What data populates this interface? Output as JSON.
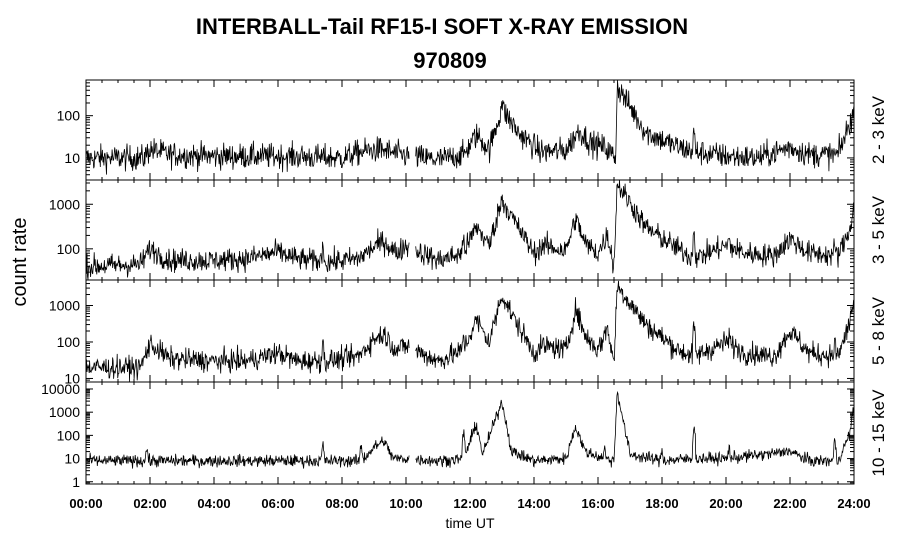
{
  "chart_data": {
    "type": "line",
    "title": "INTERBALL-Tail RF15-I SOFT X-RAY EMISSION",
    "subtitle": "970809",
    "xlabel": "time UT",
    "ylabel": "count rate",
    "x_ticks": [
      "00:00",
      "02:00",
      "04:00",
      "06:00",
      "08:00",
      "10:00",
      "12:00",
      "14:00",
      "16:00",
      "18:00",
      "20:00",
      "22:00",
      "24:00"
    ],
    "xlim_hours": [
      0,
      24
    ],
    "data_gap_hours": [
      10.1,
      10.3
    ],
    "panels": [
      {
        "name": "2 - 3 keV",
        "scale": "log",
        "ylim": [
          3,
          700
        ],
        "ytick_labels": [
          "10",
          "100"
        ],
        "ytick_values": [
          10,
          100
        ],
        "baseline": [
          [
            0,
            10
          ],
          [
            1.8,
            10
          ],
          [
            2.0,
            16
          ],
          [
            2.6,
            12
          ],
          [
            4,
            11
          ],
          [
            6,
            11
          ],
          [
            8,
            10
          ],
          [
            8.6,
            14
          ],
          [
            9.2,
            16
          ],
          [
            9.8,
            12
          ],
          [
            11,
            9
          ],
          [
            11.8,
            12
          ],
          [
            12.2,
            35
          ],
          [
            12.6,
            16
          ],
          [
            13.0,
            150
          ],
          [
            13.5,
            40
          ],
          [
            14.2,
            14
          ],
          [
            15.0,
            15
          ],
          [
            15.4,
            45
          ],
          [
            15.8,
            22
          ],
          [
            16.2,
            18
          ],
          [
            16.55,
            10
          ],
          [
            16.6,
            500
          ],
          [
            17.5,
            40
          ],
          [
            18.5,
            18
          ],
          [
            19.0,
            14
          ],
          [
            20,
            11
          ],
          [
            21,
            10
          ],
          [
            22,
            18
          ],
          [
            22.6,
            12
          ],
          [
            23.5,
            12
          ],
          [
            23.85,
            60
          ],
          [
            24,
            130
          ]
        ],
        "noise": 0.35,
        "spikes": [
          [
            19.0,
            40
          ],
          [
            13.0,
            220
          ]
        ]
      },
      {
        "name": "3 - 5 keV",
        "scale": "log",
        "ylim": [
          20,
          3500
        ],
        "ytick_labels": [
          "100",
          "1000"
        ],
        "ytick_values": [
          100,
          1000
        ],
        "baseline": [
          [
            0,
            40
          ],
          [
            1.7,
            45
          ],
          [
            2.0,
            100
          ],
          [
            2.6,
            55
          ],
          [
            4,
            55
          ],
          [
            5,
            60
          ],
          [
            6,
            85
          ],
          [
            6.6,
            60
          ],
          [
            7.5,
            50
          ],
          [
            8.5,
            60
          ],
          [
            9,
            110
          ],
          [
            9.3,
            150
          ],
          [
            9.7,
            80
          ],
          [
            10,
            120
          ],
          [
            11,
            55
          ],
          [
            11.8,
            80
          ],
          [
            12.2,
            320
          ],
          [
            12.6,
            120
          ],
          [
            13.0,
            1300
          ],
          [
            13.4,
            400
          ],
          [
            14.0,
            80
          ],
          [
            14.3,
            120
          ],
          [
            15.0,
            90
          ],
          [
            15.3,
            500
          ],
          [
            15.6,
            130
          ],
          [
            16.0,
            80
          ],
          [
            16.3,
            210
          ],
          [
            16.5,
            40
          ],
          [
            16.6,
            3000
          ],
          [
            17.5,
            300
          ],
          [
            18.5,
            100
          ],
          [
            19.0,
            60
          ],
          [
            20.0,
            120
          ],
          [
            20.6,
            80
          ],
          [
            21.5,
            70
          ],
          [
            22.0,
            170
          ],
          [
            22.6,
            80
          ],
          [
            23.5,
            70
          ],
          [
            23.85,
            250
          ],
          [
            24,
            900
          ]
        ],
        "noise": 0.3,
        "spikes": [
          [
            7.4,
            140
          ],
          [
            11.8,
            200
          ],
          [
            19.0,
            300
          ],
          [
            20.1,
            150
          ],
          [
            23.4,
            120
          ]
        ]
      },
      {
        "name": "5 - 8 keV",
        "scale": "log",
        "ylim": [
          8,
          5000
        ],
        "ytick_labels": [
          "10",
          "100",
          "1000"
        ],
        "ytick_values": [
          10,
          100,
          1000
        ],
        "baseline": [
          [
            0,
            20
          ],
          [
            1.7,
            20
          ],
          [
            2.0,
            90
          ],
          [
            2.6,
            35
          ],
          [
            4,
            30
          ],
          [
            5,
            30
          ],
          [
            6,
            50
          ],
          [
            6.6,
            30
          ],
          [
            7.5,
            30
          ],
          [
            8.5,
            40
          ],
          [
            9,
            120
          ],
          [
            9.3,
            170
          ],
          [
            9.7,
            60
          ],
          [
            10,
            80
          ],
          [
            11,
            30
          ],
          [
            11.8,
            60
          ],
          [
            12.2,
            400
          ],
          [
            12.6,
            100
          ],
          [
            13.0,
            2000
          ],
          [
            13.4,
            400
          ],
          [
            14.0,
            50
          ],
          [
            14.3,
            80
          ],
          [
            15.0,
            60
          ],
          [
            15.3,
            800
          ],
          [
            15.6,
            150
          ],
          [
            16.0,
            60
          ],
          [
            16.3,
            250
          ],
          [
            16.5,
            25
          ],
          [
            16.6,
            3500
          ],
          [
            17.5,
            300
          ],
          [
            18.5,
            60
          ],
          [
            19.0,
            40
          ],
          [
            20.0,
            100
          ],
          [
            20.6,
            50
          ],
          [
            21.5,
            40
          ],
          [
            22.0,
            200
          ],
          [
            22.6,
            50
          ],
          [
            23.5,
            40
          ],
          [
            23.85,
            300
          ],
          [
            24,
            1500
          ]
        ],
        "noise": 0.35,
        "spikes": [
          [
            7.4,
            100
          ],
          [
            11.8,
            150
          ],
          [
            18.0,
            120
          ],
          [
            19.0,
            300
          ],
          [
            20.1,
            150
          ],
          [
            23.4,
            100
          ]
        ]
      },
      {
        "name": "10 - 15 keV",
        "scale": "log",
        "ylim": [
          0.8,
          20000
        ],
        "ytick_labels": [
          "1",
          "10",
          "100",
          "1000",
          "10000"
        ],
        "ytick_values": [
          1,
          10,
          100,
          1000,
          10000
        ],
        "baseline": [
          [
            0,
            8
          ],
          [
            8.6,
            8
          ],
          [
            9.0,
            30
          ],
          [
            9.3,
            60
          ],
          [
            9.6,
            10
          ],
          [
            10,
            10
          ],
          [
            11,
            8
          ],
          [
            11.8,
            10
          ],
          [
            12.2,
            300
          ],
          [
            12.4,
            15
          ],
          [
            13.0,
            3000
          ],
          [
            13.3,
            20
          ],
          [
            14.0,
            8
          ],
          [
            15.0,
            10
          ],
          [
            15.3,
            250
          ],
          [
            15.6,
            20
          ],
          [
            16.2,
            10
          ],
          [
            16.5,
            8
          ],
          [
            16.6,
            8000
          ],
          [
            17.0,
            15
          ],
          [
            18,
            8
          ],
          [
            19,
            10
          ],
          [
            20,
            10
          ],
          [
            22,
            20
          ],
          [
            22.6,
            8
          ],
          [
            23.5,
            8
          ],
          [
            23.85,
            100
          ],
          [
            24,
            1500
          ]
        ],
        "noise": 0.3,
        "spikes": [
          [
            1.9,
            30
          ],
          [
            7.4,
            40
          ],
          [
            8.6,
            40
          ],
          [
            11.8,
            150
          ],
          [
            16.2,
            30
          ],
          [
            18.0,
            25
          ],
          [
            19.0,
            300
          ],
          [
            20.1,
            30
          ],
          [
            21.9,
            30
          ],
          [
            23.4,
            60
          ]
        ]
      }
    ]
  }
}
